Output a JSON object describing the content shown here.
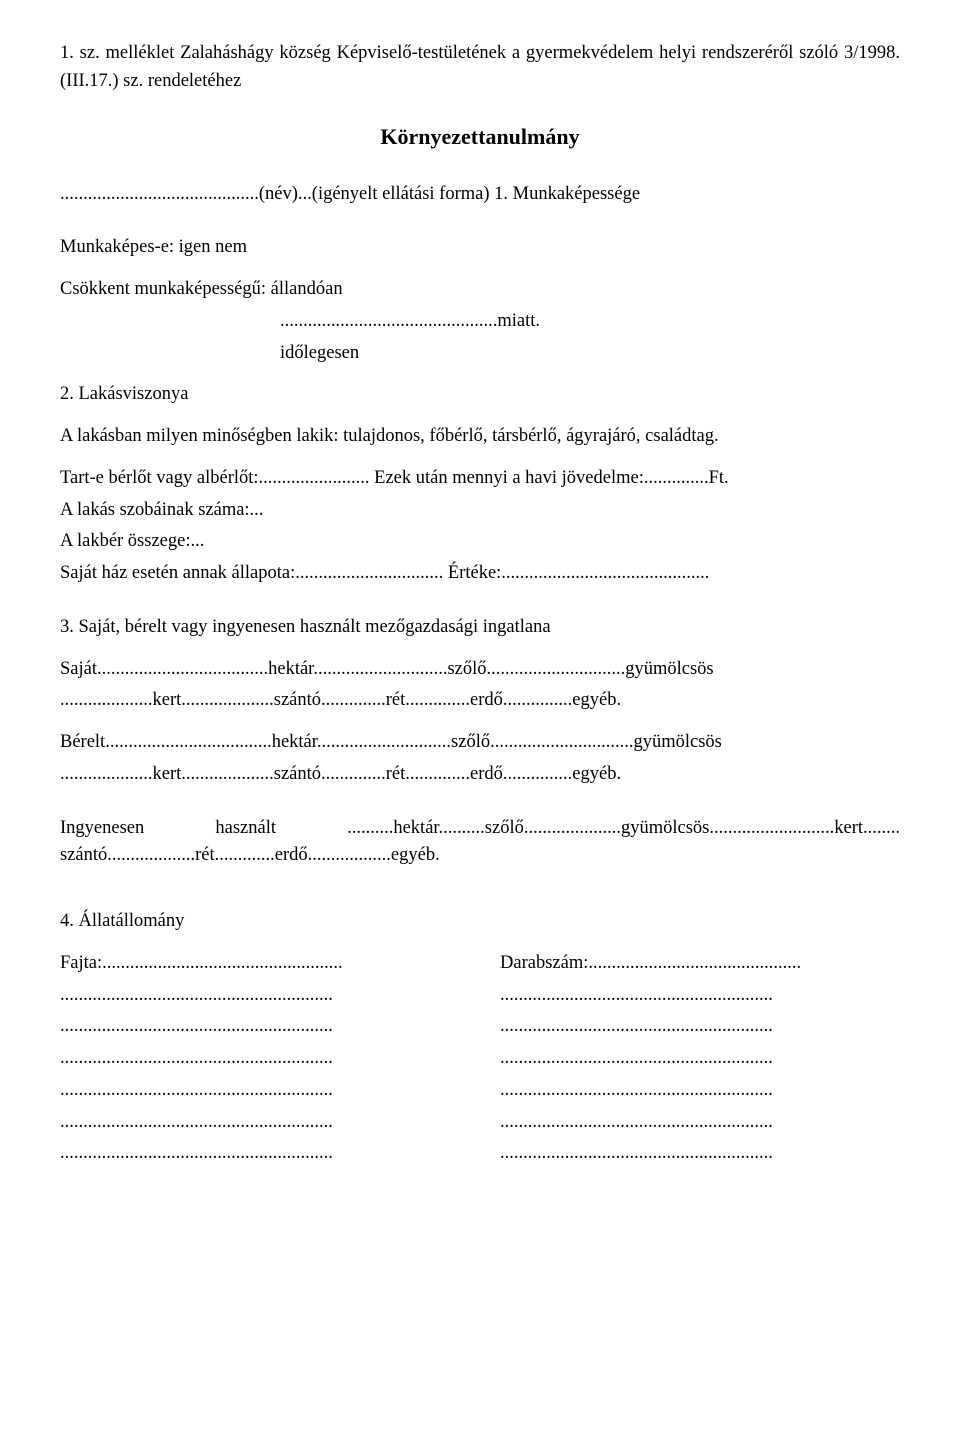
{
  "header": {
    "line": "1. sz. melléklet Zalaháshágy község Képviselő-testületének a gyermekvédelem helyi rendszeréről szóló 3/1998. (III.17.) sz. rendeletéhez"
  },
  "title": "Környezettanulmány",
  "intro": "...........................................(név)...(igényelt ellátási forma) 1. Munkaképessége",
  "section1": {
    "l1": "Munkaképes-e: igen     nem",
    "l2": "Csökkent munkaképességű: állandóan",
    "l3": "...............................................miatt.",
    "l4": "időlegesen"
  },
  "section2": {
    "heading": "2. Lakásviszonya",
    "l1": "A lakásban milyen minőségben lakik: tulajdonos, főbérlő, társbérlő, ágyrajáró, családtag.",
    "l2": "Tart-e bérlőt vagy albérlőt:........................ Ezek után mennyi a havi jövedelme:..............Ft.",
    "l3": "A lakás szobáinak száma:...",
    "l4": "A lakbér összege:...",
    "l5": "Saját ház esetén annak állapota:................................ Értéke:............................................."
  },
  "section3": {
    "heading": "3. Saját,  bérelt  vagy ingyenesen használt mezőgazdasági ingatlana",
    "sajat1": "Saját.....................................hektár.............................szőlő..............................gyümölcsös",
    "sajat2": "....................kert....................szántó..............rét..............erdő...............egyéb.",
    "berelt1": "Bérelt....................................hektár.............................szőlő...............................gyümölcsös",
    "berelt2": "....................kert....................szántó..............rét..............erdő...............egyéb.",
    "ingyen": "Ingyenesen   használt ..........hektár..........szőlő.....................gyümölcsös...........................kert........ szántó...................rét.............erdő..................egyéb."
  },
  "section4": {
    "heading": "4. Állatállomány",
    "left_label": "Fajta:....................................................",
    "right_label": "Darabszám:..............................................",
    "left_dots": "...........................................................",
    "right_dots": "..........................................................."
  }
}
